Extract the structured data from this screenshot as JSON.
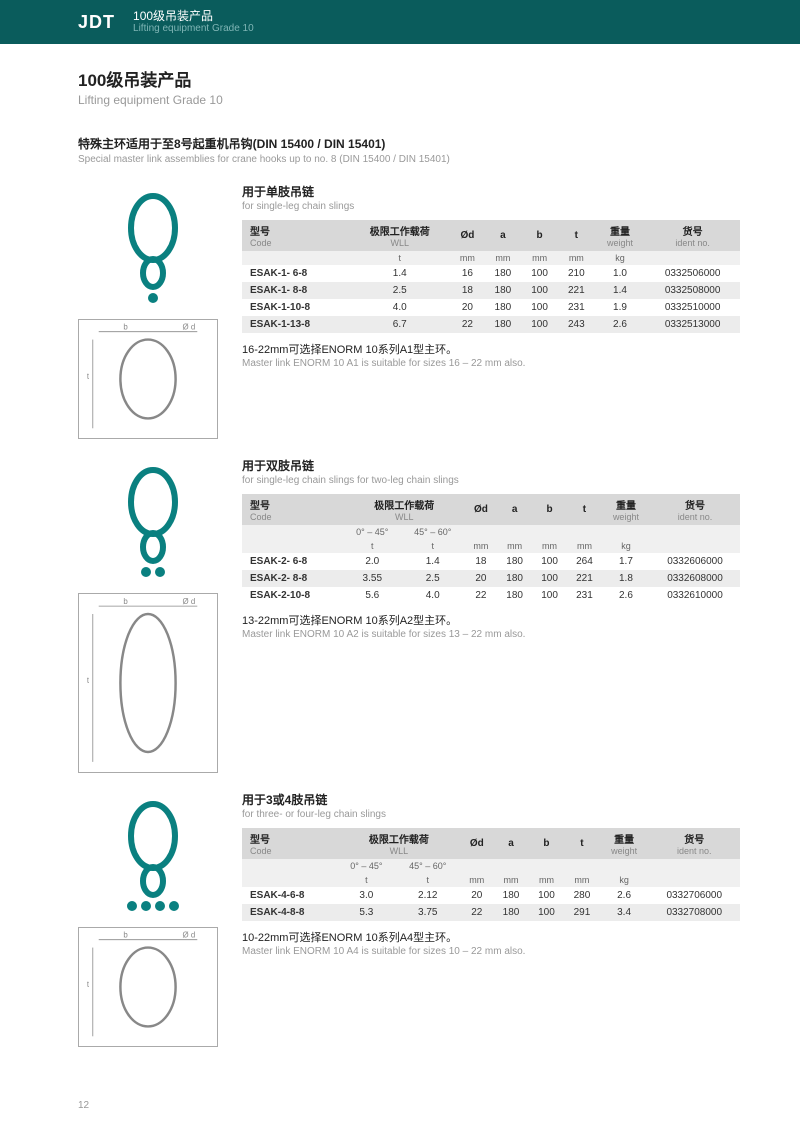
{
  "header": {
    "logo": "JDT",
    "title_cn": "100级吊装产品",
    "title_en": "Lifting equipment Grade 10"
  },
  "page": {
    "title_cn": "100级吊装产品",
    "title_en": "Lifting equipment Grade 10",
    "intro_cn": "特殊主环适用于至8号起重机吊钩(DIN 15400 / DIN 15401)",
    "intro_en": "Special master link assemblies for crane hooks up to no. 8 (DIN 15400 / DIN 15401)",
    "page_number": "12"
  },
  "colors": {
    "header_bg": "#0a5c5c",
    "link_stroke": "#0a8080",
    "table_header_bg": "#d8d8d8",
    "row_alt_bg": "#ececec",
    "text_muted": "#999"
  },
  "sections": [
    {
      "title_cn": "用于单肢吊链",
      "title_en": "for single-leg chain slings",
      "note_cn": "16-22mm可选择ENORM 10系列A1型主环。",
      "note_en": "Master link ENORM 10 A1 is suitable for sizes 16 – 22 mm also.",
      "svg_extra": 1,
      "diagram_h": 120,
      "table": {
        "type": "single",
        "columns_cn": [
          "型号",
          "极限工作载荷",
          "Ød",
          "a",
          "b",
          "t",
          "重量",
          "货号"
        ],
        "columns_en": [
          "Code",
          "WLL",
          "",
          "",
          "",
          "",
          "weight",
          "ident no."
        ],
        "units": [
          "",
          "t",
          "mm",
          "mm",
          "mm",
          "mm",
          "kg",
          ""
        ],
        "rows": [
          [
            "ESAK-1- 6-8",
            "1.4",
            "16",
            "180",
            "100",
            "210",
            "1.0",
            "0332506000"
          ],
          [
            "ESAK-1- 8-8",
            "2.5",
            "18",
            "180",
            "100",
            "221",
            "1.4",
            "0332508000"
          ],
          [
            "ESAK-1-10-8",
            "4.0",
            "20",
            "180",
            "100",
            "231",
            "1.9",
            "0332510000"
          ],
          [
            "ESAK-1-13-8",
            "6.7",
            "22",
            "180",
            "100",
            "243",
            "2.6",
            "0332513000"
          ]
        ]
      }
    },
    {
      "title_cn": "用于双肢吊链",
      "title_en": "for single-leg chain slings for two-leg chain slings",
      "note_cn": "13-22mm可选择ENORM 10系列A2型主环。",
      "note_en": "Master link ENORM 10 A2 is suitable for sizes 13 – 22 mm also.",
      "svg_extra": 2,
      "diagram_h": 180,
      "table": {
        "type": "double",
        "columns_cn": [
          "型号",
          "极限工作载荷",
          "Ød",
          "a",
          "b",
          "t",
          "重量",
          "货号"
        ],
        "columns_en": [
          "Code",
          "WLL",
          "",
          "",
          "",
          "",
          "weight",
          "ident no."
        ],
        "sub_wll": [
          "0° – 45°",
          "45° – 60°"
        ],
        "units": [
          "",
          "t",
          "t",
          "mm",
          "mm",
          "mm",
          "mm",
          "kg",
          ""
        ],
        "rows": [
          [
            "ESAK-2- 6-8",
            "2.0",
            "1.4",
            "18",
            "180",
            "100",
            "264",
            "1.7",
            "0332606000"
          ],
          [
            "ESAK-2- 8-8",
            "3.55",
            "2.5",
            "20",
            "180",
            "100",
            "221",
            "1.8",
            "0332608000"
          ],
          [
            "ESAK-2-10-8",
            "5.6",
            "4.0",
            "22",
            "180",
            "100",
            "231",
            "2.6",
            "0332610000"
          ]
        ]
      }
    },
    {
      "title_cn": "用于3或4肢吊链",
      "title_en": "for three- or four-leg chain slings",
      "note_cn": "10-22mm可选择ENORM 10系列A4型主环。",
      "note_en": "Master link ENORM 10 A4 is suitable for sizes 10 – 22 mm also.",
      "svg_extra": 4,
      "diagram_h": 120,
      "table": {
        "type": "double",
        "columns_cn": [
          "型号",
          "极限工作载荷",
          "Ød",
          "a",
          "b",
          "t",
          "重量",
          "货号"
        ],
        "columns_en": [
          "Code",
          "WLL",
          "",
          "",
          "",
          "",
          "weight",
          "ident no."
        ],
        "sub_wll": [
          "0° – 45°",
          "45° – 60°"
        ],
        "units": [
          "",
          "t",
          "t",
          "mm",
          "mm",
          "mm",
          "mm",
          "kg",
          ""
        ],
        "rows": [
          [
            "ESAK-4-6-8",
            "3.0",
            "2.12",
            "20",
            "180",
            "100",
            "280",
            "2.6",
            "0332706000"
          ],
          [
            "ESAK-4-8-8",
            "5.3",
            "3.75",
            "22",
            "180",
            "100",
            "291",
            "3.4",
            "0332708000"
          ]
        ]
      }
    }
  ]
}
